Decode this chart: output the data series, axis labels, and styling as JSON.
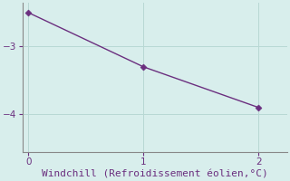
{
  "x": [
    0,
    1,
    2
  ],
  "y": [
    -2.5,
    -3.3,
    -3.9
  ],
  "line_color": "#6b2f7f",
  "marker": "D",
  "marker_size": 3.5,
  "xlabel": "Windchill (Refroidissement éolien,°C)",
  "xlabel_color": "#6b2f7f",
  "xlabel_fontsize": 8,
  "background_color": "#d8eeec",
  "grid_color": "#b8d8d4",
  "tick_color": "#6b2f7f",
  "xlim": [
    -0.05,
    2.25
  ],
  "ylim": [
    -4.55,
    -2.35
  ],
  "yticks": [
    -4,
    -3
  ],
  "xticks": [
    0,
    1,
    2
  ],
  "spine_color": "#888888",
  "linewidth": 1.0
}
